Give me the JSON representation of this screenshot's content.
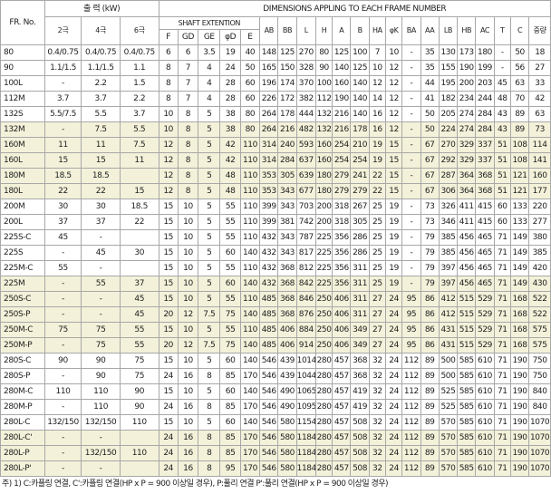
{
  "headers": {
    "frame_no": "FR. No.",
    "output": "출 력 (kW)",
    "poles": [
      "2극",
      "4극",
      "6극"
    ],
    "dimensions": "DIMENSIONS APPLING TO EACH FRAME NUMBER",
    "shaft": "SHAFT EXTENTION",
    "shaft_cols": [
      "F",
      "GD",
      "GE",
      "φD",
      "E"
    ],
    "dim_cols": [
      "AB",
      "BB",
      "L",
      "H",
      "A",
      "B",
      "HA",
      "φK",
      "BA",
      "AA",
      "LB",
      "HB",
      "AC",
      "T",
      "C",
      "중량"
    ]
  },
  "rows": [
    {
      "hl": false,
      "c": [
        "80",
        "0.4/0.75",
        "0.4/0.75",
        "0.4/0.75",
        "6",
        "6",
        "3.5",
        "19",
        "40",
        "148",
        "125",
        "270",
        "80",
        "125",
        "100",
        "7",
        "10",
        "-",
        "35",
        "130",
        "173",
        "180",
        "-",
        "50",
        "18"
      ]
    },
    {
      "hl": false,
      "c": [
        "90",
        "1.1/1.5",
        "1.1/1.5",
        "1.1",
        "8",
        "7",
        "4",
        "24",
        "50",
        "165",
        "150",
        "328",
        "90",
        "140",
        "125",
        "10",
        "12",
        "-",
        "35",
        "155",
        "190",
        "199",
        "-",
        "56",
        "27"
      ]
    },
    {
      "hl": false,
      "c": [
        "100L",
        "-",
        "2.2",
        "1.5",
        "8",
        "7",
        "4",
        "28",
        "60",
        "196",
        "174",
        "370",
        "100",
        "160",
        "140",
        "12",
        "12",
        "-",
        "44",
        "195",
        "200",
        "203",
        "45",
        "63",
        "33"
      ]
    },
    {
      "hl": false,
      "c": [
        "112M",
        "3.7",
        "3.7",
        "2.2",
        "8",
        "7",
        "4",
        "28",
        "60",
        "226",
        "172",
        "382",
        "112",
        "190",
        "140",
        "14",
        "12",
        "-",
        "41",
        "182",
        "234",
        "244",
        "48",
        "70",
        "42"
      ]
    },
    {
      "hl": false,
      "c": [
        "132S",
        "5.5/7.5",
        "5.5",
        "3.7",
        "10",
        "8",
        "5",
        "38",
        "80",
        "264",
        "178",
        "444",
        "132",
        "216",
        "140",
        "16",
        "12",
        "-",
        "50",
        "205",
        "274",
        "284",
        "43",
        "89",
        "63"
      ]
    },
    {
      "hl": true,
      "c": [
        "132M",
        "-",
        "7.5",
        "5.5",
        "10",
        "8",
        "5",
        "38",
        "80",
        "264",
        "216",
        "482",
        "132",
        "216",
        "178",
        "16",
        "12",
        "-",
        "50",
        "224",
        "274",
        "284",
        "43",
        "89",
        "73"
      ]
    },
    {
      "hl": true,
      "c": [
        "160M",
        "11",
        "11",
        "7.5",
        "12",
        "8",
        "5",
        "42",
        "110",
        "314",
        "240",
        "593",
        "160",
        "254",
        "210",
        "19",
        "15",
        "-",
        "67",
        "270",
        "329",
        "337",
        "51",
        "108",
        "114"
      ]
    },
    {
      "hl": true,
      "c": [
        "160L",
        "15",
        "15",
        "11",
        "12",
        "8",
        "5",
        "42",
        "110",
        "314",
        "284",
        "637",
        "160",
        "254",
        "254",
        "19",
        "15",
        "-",
        "67",
        "292",
        "329",
        "337",
        "51",
        "108",
        "141"
      ]
    },
    {
      "hl": true,
      "c": [
        "180M",
        "18.5",
        "18.5",
        "",
        "12",
        "8",
        "5",
        "48",
        "110",
        "353",
        "305",
        "639",
        "180",
        "279",
        "241",
        "22",
        "15",
        "-",
        "67",
        "287",
        "364",
        "368",
        "51",
        "121",
        "160"
      ]
    },
    {
      "hl": true,
      "c": [
        "180L",
        "22",
        "22",
        "15",
        "12",
        "8",
        "5",
        "48",
        "110",
        "353",
        "343",
        "677",
        "180",
        "279",
        "279",
        "22",
        "15",
        "-",
        "67",
        "306",
        "364",
        "368",
        "51",
        "121",
        "177"
      ]
    },
    {
      "hl": false,
      "c": [
        "200M",
        "30",
        "30",
        "18.5",
        "15",
        "10",
        "5",
        "55",
        "110",
        "399",
        "343",
        "703",
        "200",
        "318",
        "267",
        "25",
        "19",
        "-",
        "73",
        "326",
        "411",
        "415",
        "60",
        "133",
        "220"
      ]
    },
    {
      "hl": false,
      "c": [
        "200L",
        "37",
        "37",
        "22",
        "15",
        "10",
        "5",
        "55",
        "110",
        "399",
        "381",
        "742",
        "200",
        "318",
        "305",
        "25",
        "19",
        "-",
        "73",
        "346",
        "411",
        "415",
        "60",
        "133",
        "277"
      ]
    },
    {
      "hl": false,
      "c": [
        "225S-C",
        "45",
        "-",
        "",
        "15",
        "10",
        "5",
        "55",
        "110",
        "432",
        "343",
        "787",
        "225",
        "356",
        "286",
        "25",
        "19",
        "-",
        "79",
        "385",
        "456",
        "465",
        "71",
        "149",
        "380"
      ]
    },
    {
      "hl": false,
      "c": [
        "225S",
        "-",
        "45",
        "30",
        "15",
        "10",
        "5",
        "60",
        "140",
        "432",
        "343",
        "817",
        "225",
        "356",
        "286",
        "25",
        "19",
        "-",
        "79",
        "385",
        "456",
        "465",
        "71",
        "149",
        "385"
      ]
    },
    {
      "hl": false,
      "c": [
        "225M-C",
        "55",
        "-",
        "",
        "15",
        "10",
        "5",
        "55",
        "110",
        "432",
        "368",
        "812",
        "225",
        "356",
        "311",
        "25",
        "19",
        "-",
        "79",
        "397",
        "456",
        "465",
        "71",
        "149",
        "420"
      ]
    },
    {
      "hl": true,
      "c": [
        "225M",
        "-",
        "55",
        "37",
        "15",
        "10",
        "5",
        "60",
        "140",
        "432",
        "368",
        "842",
        "225",
        "356",
        "311",
        "25",
        "19",
        "-",
        "79",
        "397",
        "456",
        "465",
        "71",
        "149",
        "430"
      ]
    },
    {
      "hl": true,
      "c": [
        "250S-C",
        "-",
        "-",
        "45",
        "15",
        "10",
        "5",
        "55",
        "110",
        "485",
        "368",
        "846",
        "250",
        "406",
        "311",
        "27",
        "24",
        "95",
        "86",
        "412",
        "515",
        "529",
        "71",
        "168",
        "522"
      ]
    },
    {
      "hl": true,
      "c": [
        "250S-P",
        "-",
        "-",
        "45",
        "20",
        "12",
        "7.5",
        "75",
        "140",
        "485",
        "368",
        "876",
        "250",
        "406",
        "311",
        "27",
        "24",
        "95",
        "86",
        "412",
        "515",
        "529",
        "71",
        "168",
        "522"
      ]
    },
    {
      "hl": true,
      "c": [
        "250M-C",
        "75",
        "75",
        "55",
        "15",
        "10",
        "5",
        "55",
        "110",
        "485",
        "406",
        "884",
        "250",
        "406",
        "349",
        "27",
        "24",
        "95",
        "86",
        "431",
        "515",
        "529",
        "71",
        "168",
        "575"
      ]
    },
    {
      "hl": true,
      "c": [
        "250M-P",
        "-",
        "75",
        "55",
        "20",
        "12",
        "7.5",
        "75",
        "140",
        "485",
        "406",
        "914",
        "250",
        "406",
        "349",
        "27",
        "24",
        "95",
        "86",
        "431",
        "515",
        "529",
        "71",
        "168",
        "575"
      ]
    },
    {
      "hl": false,
      "c": [
        "280S-C",
        "90",
        "90",
        "75",
        "15",
        "10",
        "5",
        "60",
        "140",
        "546",
        "439",
        "1014",
        "280",
        "457",
        "368",
        "32",
        "24",
        "112",
        "89",
        "500",
        "585",
        "610",
        "71",
        "190",
        "750"
      ]
    },
    {
      "hl": false,
      "c": [
        "280S-P",
        "-",
        "90",
        "75",
        "24",
        "16",
        "8",
        "85",
        "170",
        "546",
        "439",
        "1044",
        "280",
        "457",
        "368",
        "32",
        "24",
        "112",
        "89",
        "500",
        "585",
        "610",
        "71",
        "190",
        "750"
      ]
    },
    {
      "hl": false,
      "c": [
        "280M-C",
        "110",
        "110",
        "90",
        "15",
        "10",
        "5",
        "60",
        "140",
        "546",
        "490",
        "1065",
        "280",
        "457",
        "419",
        "32",
        "24",
        "112",
        "89",
        "525",
        "585",
        "610",
        "71",
        "190",
        "840"
      ]
    },
    {
      "hl": false,
      "c": [
        "280M-P",
        "-",
        "110",
        "90",
        "24",
        "16",
        "8",
        "85",
        "170",
        "546",
        "490",
        "1095",
        "280",
        "457",
        "419",
        "32",
        "24",
        "112",
        "89",
        "525",
        "585",
        "610",
        "71",
        "190",
        "840"
      ]
    },
    {
      "hl": false,
      "c": [
        "280L-C",
        "132/150",
        "132/150",
        "110",
        "15",
        "10",
        "5",
        "60",
        "140",
        "546",
        "580",
        "1154",
        "280",
        "457",
        "508",
        "32",
        "24",
        "112",
        "89",
        "570",
        "585",
        "610",
        "71",
        "190",
        "1070"
      ]
    },
    {
      "hl": true,
      "c": [
        "280L-C'",
        "-",
        "-",
        "",
        "24",
        "16",
        "8",
        "85",
        "170",
        "546",
        "580",
        "1184",
        "280",
        "457",
        "508",
        "32",
        "24",
        "112",
        "89",
        "570",
        "585",
        "610",
        "71",
        "190",
        "1070"
      ]
    },
    {
      "hl": true,
      "c": [
        "280L-P",
        "-",
        "132/150",
        "110",
        "24",
        "16",
        "8",
        "85",
        "170",
        "546",
        "580",
        "1184",
        "280",
        "457",
        "508",
        "32",
        "24",
        "112",
        "89",
        "570",
        "585",
        "610",
        "71",
        "190",
        "1070"
      ]
    },
    {
      "hl": true,
      "c": [
        "280L-P'",
        "-",
        "-",
        "",
        "24",
        "16",
        "8",
        "95",
        "170",
        "546",
        "580",
        "1184",
        "280",
        "457",
        "508",
        "32",
        "24",
        "112",
        "89",
        "570",
        "585",
        "610",
        "71",
        "190",
        "1070"
      ]
    }
  ],
  "footnote": "주) 1) C:카플링 연결, C':카플링 연결(HP x P = 900 이상일 경우), P:풀리 연결  P':풀리 연결(HP x P = 900 이상일 경우)"
}
